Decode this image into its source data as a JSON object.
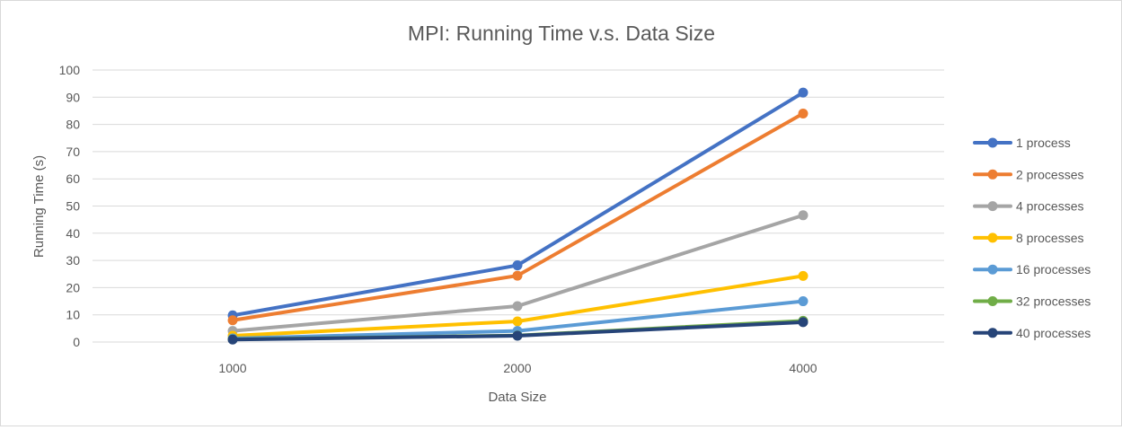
{
  "chart_data": {
    "type": "line",
    "title": "MPI: Running Time v.s. Data Size",
    "xlabel": "Data Size",
    "ylabel": "Running Time (s)",
    "categories": [
      "1000",
      "2000",
      "4000"
    ],
    "ylim": [
      0,
      100
    ],
    "yticks": [
      0,
      10,
      20,
      30,
      40,
      50,
      60,
      70,
      80,
      90,
      100
    ],
    "grid": true,
    "legend_position": "right",
    "series": [
      {
        "name": "1 process",
        "color": "#4472C4",
        "values": [
          9.8,
          28.2,
          91.7
        ]
      },
      {
        "name": "2 processes",
        "color": "#ED7D31",
        "values": [
          8.0,
          24.4,
          84.0
        ]
      },
      {
        "name": "4 processes",
        "color": "#A5A5A5",
        "values": [
          4.1,
          13.2,
          46.6
        ]
      },
      {
        "name": "8 processes",
        "color": "#FFC000",
        "values": [
          2.3,
          7.6,
          24.3
        ]
      },
      {
        "name": "16 processes",
        "color": "#5B9BD5",
        "values": [
          1.3,
          4.1,
          15.0
        ]
      },
      {
        "name": "32 processes",
        "color": "#70AD47",
        "values": [
          1.0,
          2.4,
          7.8
        ]
      },
      {
        "name": "40 processes",
        "color": "#264478",
        "values": [
          0.9,
          2.3,
          7.3
        ]
      }
    ]
  }
}
